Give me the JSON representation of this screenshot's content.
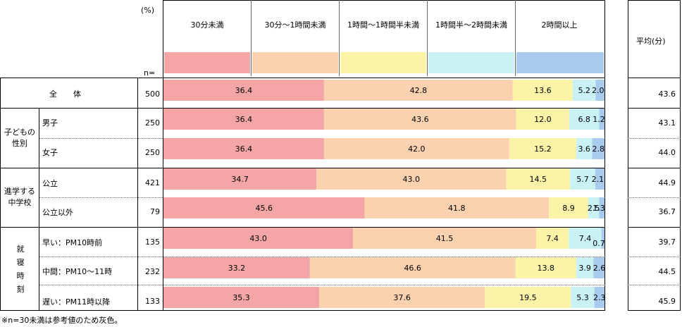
{
  "header": {
    "percent_unit": "(%)",
    "n_label": "n=",
    "average_header": "平均(分)",
    "footnote": "※n=30未満は参考値のため灰色。"
  },
  "legend": [
    {
      "label": "30分未満",
      "color": "#f4a6a6"
    },
    {
      "label": "30分〜1時間未満",
      "color": "#fbd2b0"
    },
    {
      "label": "1時間〜1時間半未満",
      "color": "#fbf3a8"
    },
    {
      "label": "1時間半〜2時間未満",
      "color": "#c8f2f4"
    },
    {
      "label": "2時間以上",
      "color": "#a9cbee"
    }
  ],
  "groups": [
    {
      "label": "全　体"
    },
    {
      "label": "子どもの性別"
    },
    {
      "label": "進学する中学校"
    },
    {
      "label": "就寝時刻"
    }
  ],
  "chart_data": {
    "type": "bar",
    "orientation": "horizontal",
    "stacked": true,
    "unit": "%",
    "series_names": [
      "30分未満",
      "30分〜1時間未満",
      "1時間〜1時間半未満",
      "1時間半〜2時間未満",
      "2時間以上"
    ],
    "rows": [
      {
        "label": "",
        "n": "500",
        "values": [
          36.4,
          42.8,
          13.6,
          5.2,
          2.0
        ],
        "value_labels": [
          "36.4",
          "42.8",
          "13.6",
          "5.2",
          "2.0"
        ],
        "average": "43.6"
      },
      {
        "label": "男子",
        "n": "250",
        "values": [
          36.4,
          43.6,
          12.0,
          6.8,
          1.2
        ],
        "value_labels": [
          "36.4",
          "43.6",
          "12.0",
          "6.8",
          "1.2"
        ],
        "average": "43.1"
      },
      {
        "label": "女子",
        "n": "250",
        "values": [
          36.4,
          42.0,
          15.2,
          3.6,
          2.8
        ],
        "value_labels": [
          "36.4",
          "42.0",
          "15.2",
          "3.6",
          "2.8"
        ],
        "average": "44.0"
      },
      {
        "label": "公立",
        "n": "421",
        "values": [
          34.7,
          43.0,
          14.5,
          5.7,
          2.1
        ],
        "value_labels": [
          "34.7",
          "43.0",
          "14.5",
          "5.7",
          "2.1"
        ],
        "average": "44.9"
      },
      {
        "label": "公立以外",
        "n": "79",
        "values": [
          45.6,
          41.8,
          8.9,
          2.5,
          1.3
        ],
        "value_labels": [
          "45.6",
          "41.8",
          "8.9",
          "2.5",
          "1.3"
        ],
        "average": "36.7"
      },
      {
        "label": "早い：PM10時前",
        "n": "135",
        "values": [
          43.0,
          41.5,
          7.4,
          7.4,
          0.7
        ],
        "value_labels": [
          "43.0",
          "41.5",
          "7.4",
          "7.4",
          "0.7"
        ],
        "average": "39.7"
      },
      {
        "label": "中間：PM10〜11時",
        "n": "232",
        "values": [
          33.2,
          46.6,
          13.8,
          3.9,
          2.6
        ],
        "value_labels": [
          "33.2",
          "46.6",
          "13.8",
          "3.9",
          "2.6"
        ],
        "average": "44.5"
      },
      {
        "label": "遅い：PM11時以降",
        "n": "133",
        "values": [
          35.3,
          37.6,
          19.5,
          5.3,
          2.3
        ],
        "value_labels": [
          "35.3",
          "37.6",
          "19.5",
          "5.3",
          "2.3"
        ],
        "average": "45.9"
      }
    ]
  }
}
